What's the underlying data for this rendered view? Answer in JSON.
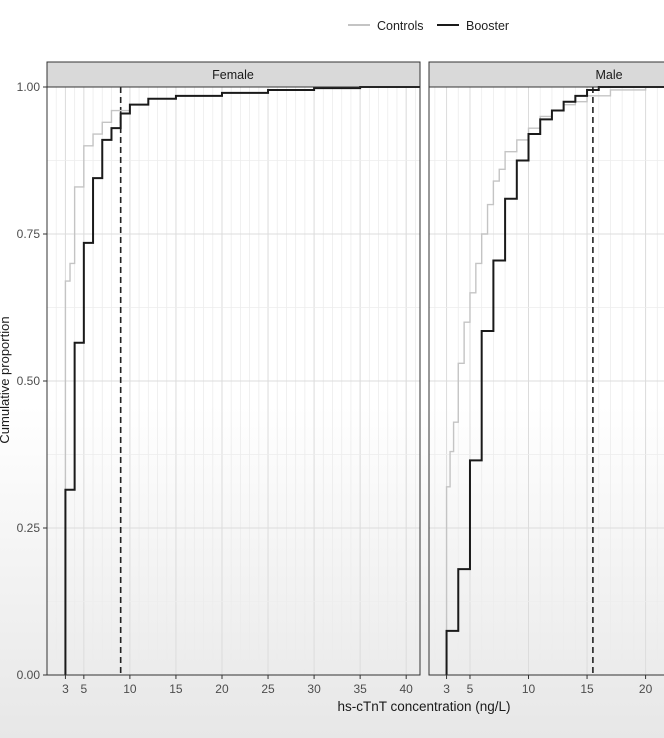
{
  "chart_data": {
    "type": "line",
    "subtype": "step-ecdf",
    "title": "",
    "xlabel": "hs-cTnT concentration (ng/L)",
    "ylabel": "Cumulative proportion",
    "ylim": [
      0,
      1
    ],
    "yticks": [
      "0.00",
      "0.25",
      "0.50",
      "0.75",
      "1.00"
    ],
    "grid": true,
    "legend_position": "top-center",
    "legend": [
      {
        "name": "Controls",
        "color": "#c4c4c4"
      },
      {
        "name": "Booster",
        "color": "#1a1a1a"
      }
    ],
    "panels": [
      {
        "name": "Female",
        "xlim": [
          1,
          41.5
        ],
        "xticks": [
          "3",
          "5",
          "10",
          "15",
          "20",
          "25",
          "30",
          "35",
          "40"
        ],
        "reference_x": 9,
        "series": [
          {
            "name": "Controls",
            "x": [
              3,
              3.5,
              4,
              5,
              6,
              7,
              8,
              10,
              12,
              15,
              20,
              25,
              30,
              35
            ],
            "y": [
              0.67,
              0.7,
              0.83,
              0.9,
              0.92,
              0.94,
              0.96,
              0.97,
              0.98,
              0.985,
              0.99,
              0.995,
              0.998,
              1.0
            ]
          },
          {
            "name": "Booster",
            "x": [
              3,
              4,
              5,
              6,
              7,
              8,
              9,
              10,
              12,
              15,
              20,
              25,
              30,
              35
            ],
            "y": [
              0.315,
              0.565,
              0.735,
              0.845,
              0.91,
              0.93,
              0.955,
              0.97,
              0.98,
              0.985,
              0.99,
              0.995,
              0.998,
              1.0
            ]
          }
        ]
      },
      {
        "name": "Male",
        "xlim": [
          1.5,
          22
        ],
        "xticks": [
          "3",
          "5",
          "10",
          "15",
          "20"
        ],
        "reference_x": 15.5,
        "series": [
          {
            "name": "Controls",
            "x": [
              3,
              3.3,
              3.6,
              4,
              4.5,
              5,
              5.5,
              6,
              6.5,
              7,
              7.5,
              8,
              9,
              10,
              11,
              12,
              13,
              14,
              15,
              17,
              20
            ],
            "y": [
              0.32,
              0.38,
              0.43,
              0.53,
              0.6,
              0.65,
              0.7,
              0.75,
              0.8,
              0.84,
              0.86,
              0.89,
              0.91,
              0.93,
              0.95,
              0.96,
              0.97,
              0.975,
              0.985,
              0.995,
              1.0
            ]
          },
          {
            "name": "Booster",
            "x": [
              3,
              4,
              5,
              6,
              7,
              8,
              9,
              10,
              11,
              12,
              13,
              14,
              15,
              16
            ],
            "y": [
              0.075,
              0.18,
              0.365,
              0.585,
              0.705,
              0.81,
              0.875,
              0.92,
              0.945,
              0.96,
              0.975,
              0.985,
              0.995,
              1.0
            ]
          }
        ]
      }
    ]
  }
}
